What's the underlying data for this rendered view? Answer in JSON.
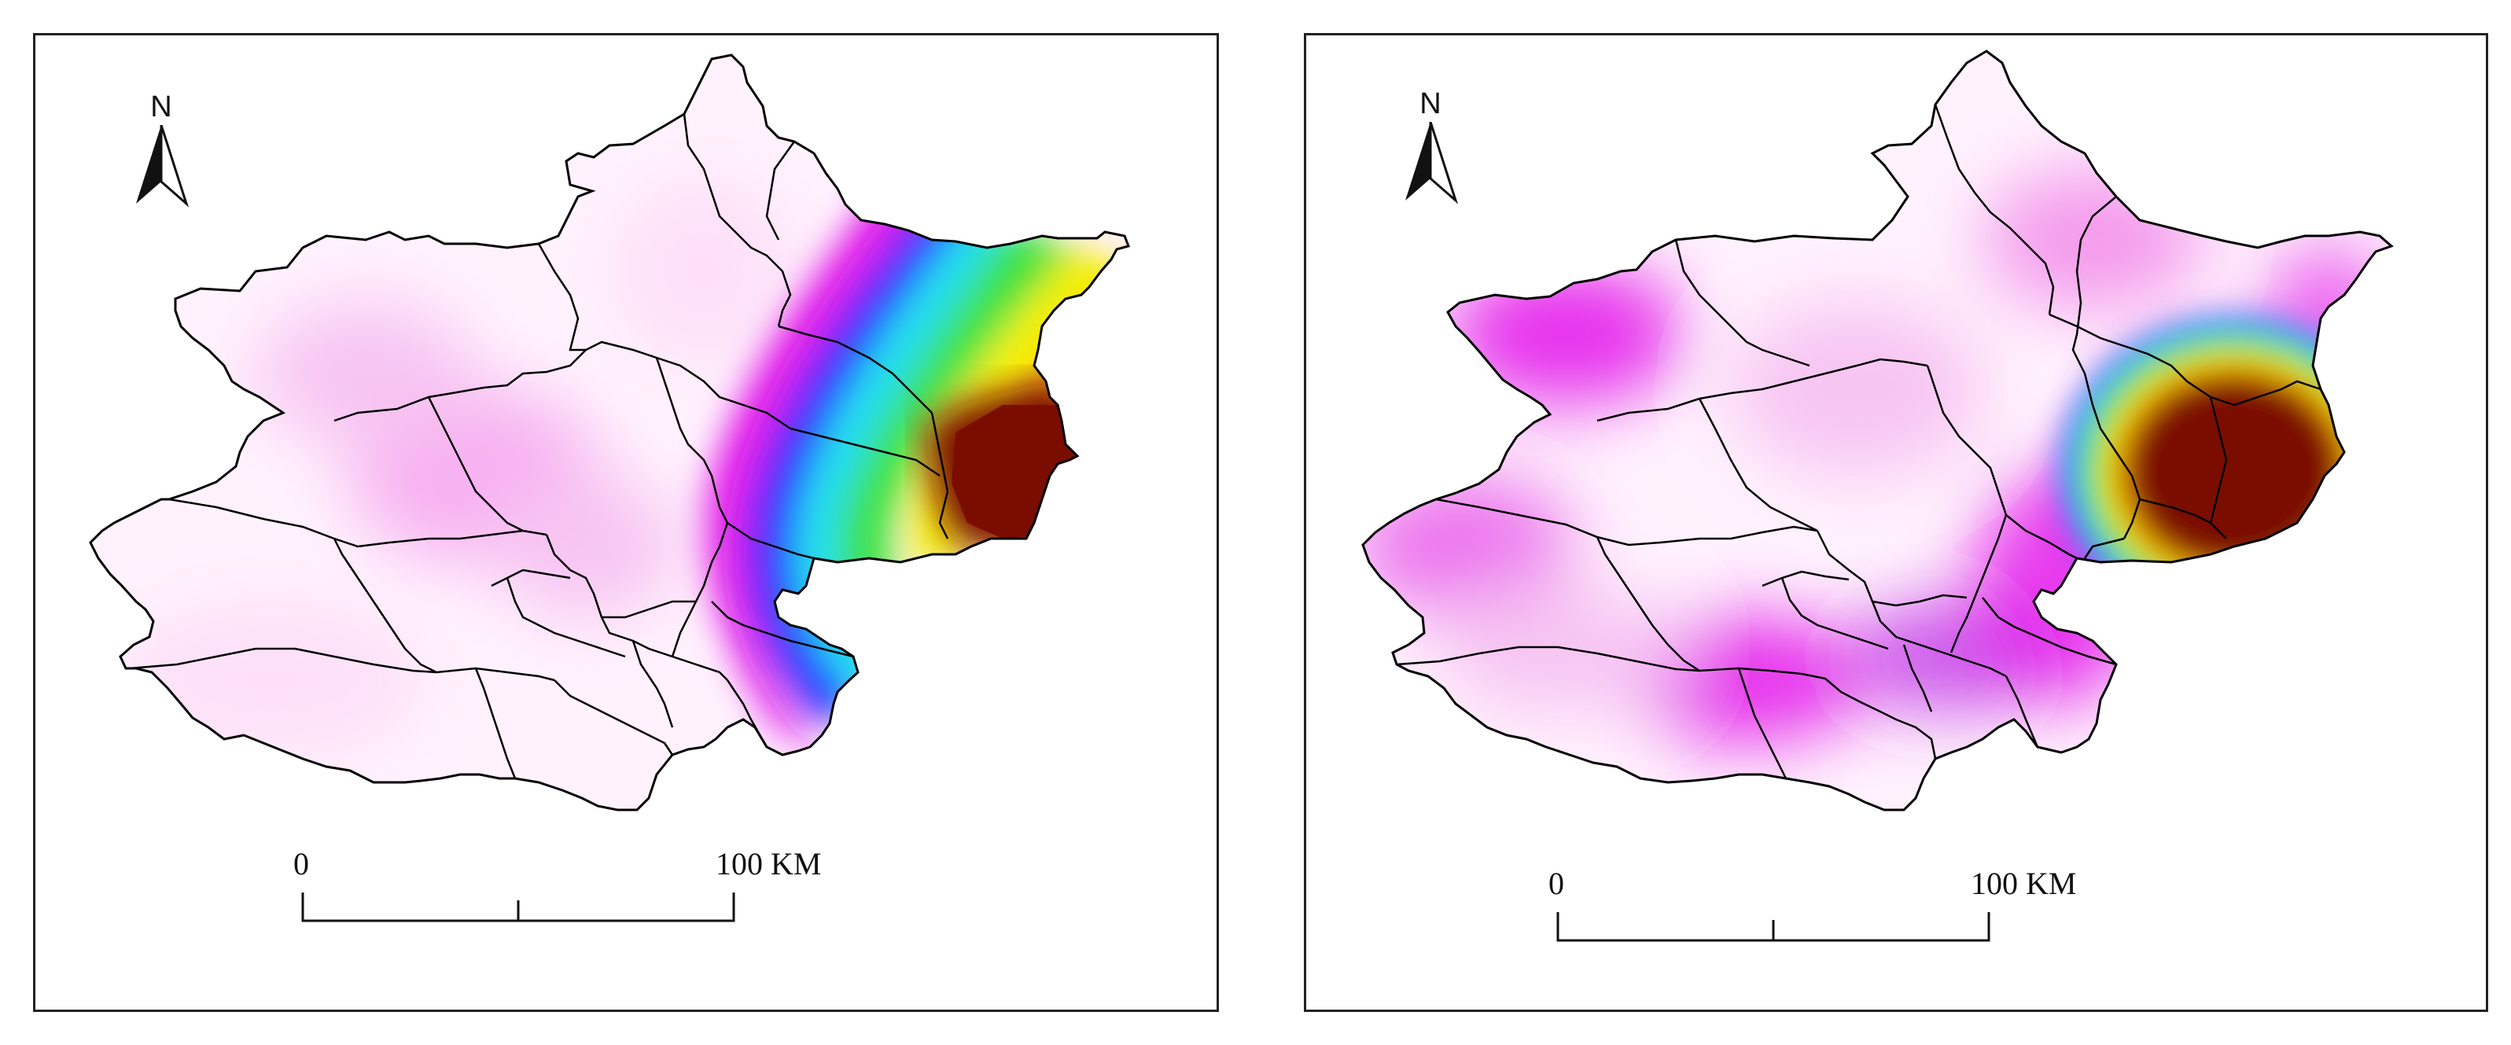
{
  "maps": [
    {
      "north_label": "N",
      "scale": {
        "start_label": "0",
        "end_label": "100",
        "unit_label": "KM"
      },
      "surface_pattern": "gradient from pink in the west to a dark red hotspot in the east, with a blue-green-yellow band in between"
    },
    {
      "north_label": "N",
      "scale": {
        "start_label": "0",
        "end_label": "100",
        "unit_label": "KM"
      },
      "surface_pattern": "pink/white background with magenta patches and a circular dark red hotspot ringed by yellow, green and blue in the east"
    }
  ],
  "colors": {
    "hotspot": "#7a0d00",
    "orange": "#ff9900",
    "yellow": "#f5f000",
    "green": "#3ee23a",
    "cyan": "#22e0f0",
    "blue": "#2b2bff",
    "magenta": "#e000e8",
    "pink": "#f7c4f2",
    "pale": "#fff2fd"
  }
}
